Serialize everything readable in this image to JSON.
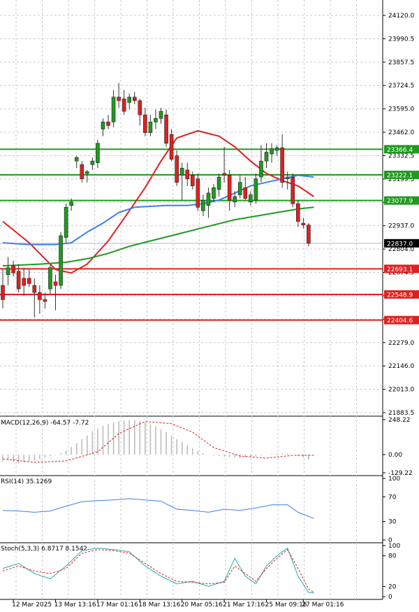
{
  "chart_data": {
    "type": "candlestick",
    "grid": true,
    "price_axis": {
      "ticks": [
        "24120.0",
        "23990.5",
        "23857.5",
        "23724.5",
        "23595.0",
        "23462.0",
        "23332.5",
        "23199.5",
        "23066.5",
        "22937.0",
        "22804.0",
        "22674.5",
        "22541.5",
        "22408.5",
        "22279.0",
        "22146.0",
        "22013.0",
        "21883.5"
      ],
      "ylim": [
        21883.5,
        24120.0
      ]
    },
    "levels": [
      {
        "label": "23366.4",
        "value": 23366.4,
        "color": "#1f9a1f"
      },
      {
        "label": "23222.1",
        "value": 23222.1,
        "color": "#1f9a1f"
      },
      {
        "label": "23077.9",
        "value": 23077.9,
        "color": "#1f9a1f"
      },
      {
        "label": "22693.1",
        "value": 22693.1,
        "color": "#e02020"
      },
      {
        "label": "22548.9",
        "value": 22548.9,
        "color": "#e02020"
      },
      {
        "label": "22404.6",
        "value": 22404.6,
        "color": "#e02020"
      }
    ],
    "current_price": {
      "label": "22837.0",
      "value": 22837.0
    },
    "candles": [
      [
        22600,
        22690,
        22470,
        22520
      ],
      [
        22660,
        22760,
        22600,
        22700
      ],
      [
        22710,
        22740,
        22650,
        22670
      ],
      [
        22680,
        22720,
        22560,
        22580
      ],
      [
        22640,
        22700,
        22540,
        22600
      ],
      [
        22640,
        22690,
        22590,
        22610
      ],
      [
        22600,
        22640,
        22420,
        22560
      ],
      [
        22560,
        22600,
        22440,
        22520
      ],
      [
        22520,
        22560,
        22470,
        22510
      ],
      [
        22580,
        22720,
        22550,
        22700
      ],
      [
        22620,
        22660,
        22460,
        22600
      ],
      [
        22600,
        22900,
        22580,
        22880
      ],
      [
        22870,
        23060,
        22840,
        23040
      ],
      [
        23050,
        23090,
        23020,
        23070
      ],
      [
        23300,
        23330,
        23260,
        23320
      ],
      [
        23280,
        23300,
        23180,
        23200
      ],
      [
        23230,
        23250,
        23180,
        23240
      ],
      [
        23280,
        23320,
        23250,
        23300
      ],
      [
        23290,
        23420,
        23260,
        23400
      ],
      [
        23480,
        23540,
        23440,
        23520
      ],
      [
        23520,
        23560,
        23480,
        23500
      ],
      [
        23520,
        23700,
        23490,
        23660
      ],
      [
        23660,
        23740,
        23600,
        23640
      ],
      [
        23650,
        23700,
        23560,
        23580
      ],
      [
        23630,
        23680,
        23590,
        23660
      ],
      [
        23660,
        23690,
        23620,
        23640
      ],
      [
        23640,
        23650,
        23500,
        23560
      ],
      [
        23560,
        23600,
        23440,
        23460
      ],
      [
        23460,
        23560,
        23440,
        23520
      ],
      [
        23520,
        23590,
        23480,
        23540
      ],
      [
        23540,
        23600,
        23510,
        23580
      ],
      [
        23560,
        23590,
        23380,
        23400
      ],
      [
        23450,
        23480,
        23300,
        23310
      ],
      [
        23330,
        23360,
        23160,
        23180
      ],
      [
        23220,
        23290,
        23080,
        23260
      ],
      [
        23250,
        23290,
        23160,
        23200
      ],
      [
        23220,
        23240,
        23140,
        23160
      ],
      [
        23200,
        23230,
        23020,
        23040
      ],
      [
        23020,
        23110,
        22990,
        23080
      ],
      [
        23050,
        23150,
        22980,
        23120
      ],
      [
        23090,
        23170,
        23070,
        23150
      ],
      [
        23140,
        23230,
        23100,
        23210
      ],
      [
        23230,
        23380,
        23180,
        23220
      ],
      [
        23220,
        23250,
        23020,
        23080
      ],
      [
        23070,
        23130,
        23040,
        23100
      ],
      [
        23110,
        23220,
        23090,
        23180
      ],
      [
        23150,
        23210,
        23080,
        23090
      ],
      [
        23070,
        23130,
        23050,
        23110
      ],
      [
        23080,
        23230,
        23060,
        23200
      ],
      [
        23210,
        23390,
        23180,
        23300
      ],
      [
        23300,
        23400,
        23260,
        23350
      ],
      [
        23340,
        23400,
        23290,
        23370
      ],
      [
        23360,
        23390,
        23330,
        23375
      ],
      [
        23375,
        23450,
        23150,
        23180
      ],
      [
        23200,
        23240,
        23140,
        23210
      ],
      [
        23210,
        23230,
        23040,
        23060
      ],
      [
        23060,
        23080,
        22930,
        22960
      ],
      [
        22950,
        22980,
        22920,
        22940
      ],
      [
        22940,
        22950,
        22820,
        22837
      ]
    ],
    "moving_averages": [
      {
        "color": "#e02020",
        "points": [
          [
            0,
            22960
          ],
          [
            5,
            22840
          ],
          [
            10,
            22690
          ],
          [
            13,
            22670
          ],
          [
            16,
            22720
          ],
          [
            20,
            22850
          ],
          [
            24,
            23020
          ],
          [
            27,
            23150
          ],
          [
            30,
            23300
          ],
          [
            33,
            23430
          ],
          [
            37,
            23470
          ],
          [
            41,
            23440
          ],
          [
            44,
            23380
          ],
          [
            47,
            23300
          ],
          [
            50,
            23230
          ],
          [
            53,
            23190
          ],
          [
            56,
            23160
          ],
          [
            59,
            23100
          ]
        ]
      },
      {
        "color": "#3d7ff0",
        "points": [
          [
            0,
            22840
          ],
          [
            5,
            22830
          ],
          [
            10,
            22830
          ],
          [
            13,
            22840
          ],
          [
            16,
            22900
          ],
          [
            19,
            22950
          ],
          [
            22,
            23010
          ],
          [
            25,
            23040
          ],
          [
            28,
            23045
          ],
          [
            31,
            23050
          ],
          [
            35,
            23050
          ],
          [
            38,
            23060
          ],
          [
            41,
            23080
          ],
          [
            44,
            23120
          ],
          [
            47,
            23160
          ],
          [
            50,
            23180
          ],
          [
            53,
            23200
          ],
          [
            56,
            23220
          ],
          [
            59,
            23210
          ]
        ]
      },
      {
        "color": "#1f9a1f",
        "points": [
          [
            0,
            22710
          ],
          [
            7,
            22720
          ],
          [
            12,
            22730
          ],
          [
            16,
            22750
          ],
          [
            20,
            22780
          ],
          [
            24,
            22820
          ],
          [
            28,
            22850
          ],
          [
            32,
            22880
          ],
          [
            36,
            22910
          ],
          [
            40,
            22940
          ],
          [
            44,
            22970
          ],
          [
            48,
            22990
          ],
          [
            52,
            23010
          ],
          [
            56,
            23030
          ],
          [
            59,
            23040
          ]
        ]
      }
    ],
    "macd": {
      "label": "MACD(12,26,9) -64.57 -7.72",
      "ticks": [
        "248.22",
        "0.00",
        "-129.22"
      ],
      "ylim": [
        -129.22,
        248.22
      ],
      "histogram": [
        -50,
        -40,
        -50,
        -60,
        -55,
        -45,
        -40,
        -30,
        -20,
        -10,
        -5,
        10,
        30,
        55,
        80,
        110,
        135,
        165,
        185,
        205,
        220,
        230,
        238,
        242,
        245,
        244,
        238,
        228,
        215,
        200,
        180,
        160,
        135,
        110,
        90,
        65,
        45,
        25,
        10,
        0,
        -5,
        -10,
        -15,
        -18,
        -20,
        -22,
        -20,
        -15,
        -10,
        -5,
        0,
        5,
        8,
        10,
        6,
        0,
        -10,
        -20,
        -35
      ],
      "signal": [
        [
          0,
          -30
        ],
        [
          6,
          -55
        ],
        [
          12,
          -45
        ],
        [
          18,
          20
        ],
        [
          22,
          150
        ],
        [
          27,
          235
        ],
        [
          32,
          220
        ],
        [
          36,
          160
        ],
        [
          40,
          50
        ],
        [
          45,
          -10
        ],
        [
          50,
          -25
        ],
        [
          55,
          -5
        ],
        [
          59,
          -5
        ]
      ]
    },
    "rsi": {
      "label": "RSI(14) 35.1269",
      "ticks": [
        "100",
        "70",
        "30",
        "0"
      ],
      "ylim": [
        0,
        100
      ],
      "points": [
        [
          0,
          48
        ],
        [
          3,
          47
        ],
        [
          6,
          45
        ],
        [
          9,
          47
        ],
        [
          12,
          55
        ],
        [
          15,
          62
        ],
        [
          18,
          64
        ],
        [
          21,
          65
        ],
        [
          24,
          67
        ],
        [
          27,
          65
        ],
        [
          30,
          63
        ],
        [
          33,
          50
        ],
        [
          36,
          48
        ],
        [
          39,
          45
        ],
        [
          42,
          50
        ],
        [
          45,
          48
        ],
        [
          48,
          52
        ],
        [
          51,
          57
        ],
        [
          54,
          57
        ],
        [
          56,
          45
        ],
        [
          59,
          35
        ]
      ]
    },
    "stoch": {
      "label": "Stoch(5,3,3) 6.8717 8.1542",
      "ticks": [
        "100",
        "80",
        "20",
        "0"
      ],
      "ylim": [
        0,
        100
      ],
      "k": [
        [
          0,
          55
        ],
        [
          3,
          65
        ],
        [
          6,
          45
        ],
        [
          9,
          35
        ],
        [
          12,
          60
        ],
        [
          15,
          90
        ],
        [
          18,
          95
        ],
        [
          21,
          92
        ],
        [
          24,
          88
        ],
        [
          27,
          60
        ],
        [
          30,
          40
        ],
        [
          33,
          25
        ],
        [
          36,
          30
        ],
        [
          39,
          20
        ],
        [
          42,
          30
        ],
        [
          44,
          75
        ],
        [
          46,
          40
        ],
        [
          48,
          25
        ],
        [
          50,
          60
        ],
        [
          52,
          80
        ],
        [
          54,
          95
        ],
        [
          56,
          40
        ],
        [
          58,
          8
        ],
        [
          59,
          7
        ]
      ],
      "d": [
        [
          0,
          50
        ],
        [
          3,
          60
        ],
        [
          6,
          50
        ],
        [
          9,
          45
        ],
        [
          12,
          55
        ],
        [
          15,
          85
        ],
        [
          18,
          92
        ],
        [
          21,
          90
        ],
        [
          24,
          85
        ],
        [
          27,
          65
        ],
        [
          30,
          45
        ],
        [
          33,
          30
        ],
        [
          36,
          28
        ],
        [
          39,
          25
        ],
        [
          42,
          28
        ],
        [
          44,
          60
        ],
        [
          46,
          45
        ],
        [
          48,
          30
        ],
        [
          50,
          55
        ],
        [
          52,
          75
        ],
        [
          54,
          92
        ],
        [
          56,
          55
        ],
        [
          58,
          15
        ],
        [
          59,
          8
        ]
      ]
    },
    "time_axis": {
      "labels": [
        {
          "label": "12 Mar 2025",
          "index": 2
        },
        {
          "label": "13 Mar 13:16",
          "index": 10
        },
        {
          "label": "17 Mar 01:16",
          "index": 18
        },
        {
          "label": "18 Mar 13:16",
          "index": 26
        },
        {
          "label": "20 Mar 05:16",
          "index": 34
        },
        {
          "label": "21 Mar 17:16",
          "index": 42
        },
        {
          "label": "25 Mar 09:16",
          "index": 50
        },
        {
          "label": "27 Mar 01:16",
          "index": 57
        }
      ]
    },
    "colors": {
      "bull": "#1f9a1f",
      "bear": "#e02020",
      "grid": "#c8c8d8"
    }
  }
}
